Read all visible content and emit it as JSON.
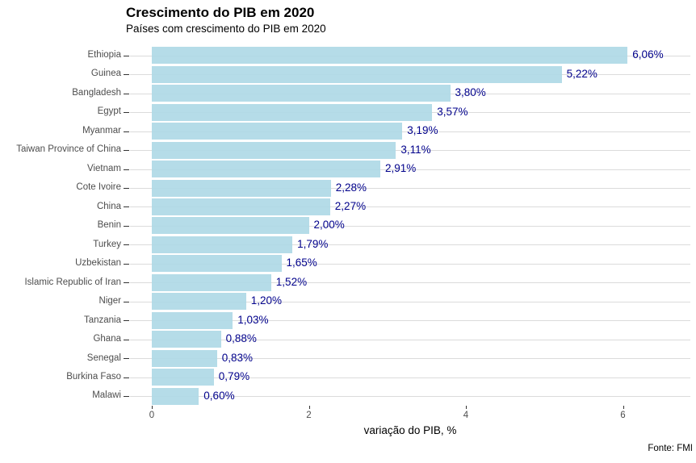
{
  "title": "Crescimento do PIB em 2020",
  "subtitle": "Países com crescimento do PIB em 2020",
  "caption": "Fonte: FMI",
  "chart_data": {
    "type": "bar",
    "orientation": "horizontal",
    "title": "Crescimento do PIB em 2020",
    "subtitle": "Países com crescimento do PIB em 2020",
    "caption": "Fonte: FMI",
    "xlabel": "variação do PIB, %",
    "ylabel": "",
    "categories": [
      "Ethiopia",
      "Guinea",
      "Bangladesh",
      "Egypt",
      "Myanmar",
      "Taiwan Province of China",
      "Vietnam",
      "Cote Ivoire",
      "China",
      "Benin",
      "Turkey",
      "Uzbekistan",
      "Islamic Republic of Iran",
      "Niger",
      "Tanzania",
      "Ghana",
      "Senegal",
      "Burkina Faso",
      "Malawi"
    ],
    "values": [
      6.06,
      5.22,
      3.8,
      3.57,
      3.19,
      3.11,
      2.91,
      2.28,
      2.27,
      2.0,
      1.79,
      1.65,
      1.52,
      1.2,
      1.03,
      0.88,
      0.83,
      0.79,
      0.6
    ],
    "value_labels": [
      "6,06%",
      "5,22%",
      "3,80%",
      "3,57%",
      "3,19%",
      "3,11%",
      "2,91%",
      "2,28%",
      "2,27%",
      "2,00%",
      "1,79%",
      "1,65%",
      "1,52%",
      "1,20%",
      "1,03%",
      "0,88%",
      "0,83%",
      "0,79%",
      "0,60%"
    ],
    "x_ticks": [
      0,
      2,
      4,
      6
    ],
    "x_tick_labels": [
      "0",
      "2",
      "4",
      "6"
    ],
    "xlim": [
      0,
      6.85
    ],
    "grid": "horizontal-category-lines-only",
    "legend": "none",
    "bar_color": "#ADD8E6",
    "value_label_color": "#00008B",
    "axis_text_color": "#4d4d4d",
    "gridline_color": "#dbdbdb"
  }
}
